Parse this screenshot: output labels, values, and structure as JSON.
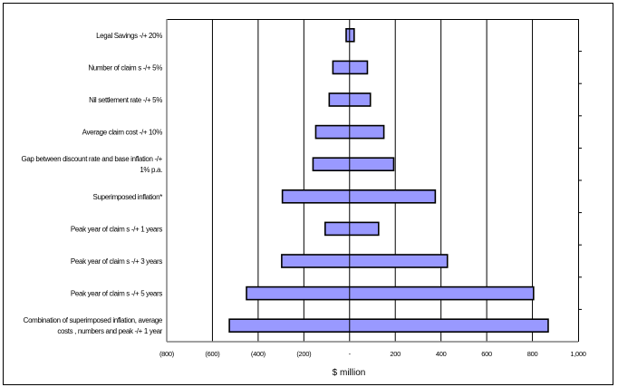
{
  "chart_data": {
    "type": "bar",
    "orientation": "horizontal",
    "subtype": "tornado",
    "title": "",
    "xlabel": "$ million",
    "ylabel": "",
    "xlim": [
      -800,
      1000
    ],
    "xticks": [
      -800,
      -600,
      -400,
      -200,
      0,
      200,
      400,
      600,
      800,
      1000
    ],
    "xtick_labels": [
      "(800)",
      "(600)",
      "(400)",
      "(200)",
      "-",
      "200",
      "400",
      "600",
      "800",
      "1,000"
    ],
    "grid": "vertical",
    "bar_color": "#9999ff",
    "categories": [
      [
        "Legal Savings -/+ 20%"
      ],
      [
        "Number of claim s -/+ 5%"
      ],
      [
        "Nil settlement rate -/+ 5%"
      ],
      [
        "Average claim cost -/+ 10%"
      ],
      [
        "Gap between discount rate and base inflation -/+",
        "1% p.a."
      ],
      [
        "Superimposed inflation*"
      ],
      [
        "Peak year of claim s -/+ 1 years"
      ],
      [
        "Peak year of claim s -/+ 3 years"
      ],
      [
        "Peak year of claim s -/+ 5 years"
      ],
      [
        "Combination of superimposed inflation, average",
        "costs , numbers and peak -/+ 1 year"
      ]
    ],
    "series": [
      {
        "values": [
          -15,
          -73,
          -89,
          -148,
          -160,
          -294,
          -107,
          -297,
          -451,
          -526
        ]
      },
      {
        "values": [
          20,
          78,
          91,
          150,
          193,
          375,
          127,
          428,
          805,
          869
        ]
      }
    ]
  }
}
